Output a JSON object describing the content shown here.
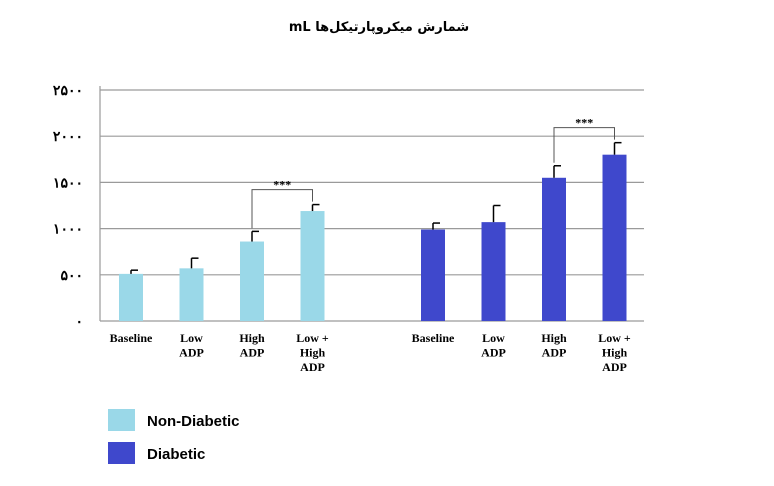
{
  "chart_data": {
    "type": "bar",
    "title": "شمارش میکروپارتیکل‌ها mL",
    "y_tick_labels": [
      "۰",
      "۵۰۰",
      "۱۰۰۰",
      "۱۵۰۰",
      "۲۰۰۰",
      "۲۵۰۰"
    ],
    "ylim": [
      0,
      2500
    ],
    "grid": true,
    "groups": [
      {
        "name": "Non-Diabetic",
        "color": "#9ad8e8",
        "categories": [
          "Baseline",
          "Low\nADP",
          "High\nADP",
          "Low +\nHigh\nADP"
        ],
        "values": [
          510,
          570,
          860,
          1190
        ],
        "errors": [
          40,
          110,
          110,
          70
        ]
      },
      {
        "name": "Diabetic",
        "color": "#3f48cc",
        "categories": [
          "Baseline",
          "Low\nADP",
          "High\nADP",
          "Low +\nHigh\nADP"
        ],
        "values": [
          990,
          1070,
          1550,
          1800
        ],
        "errors": [
          70,
          180,
          130,
          130
        ]
      }
    ],
    "significance": [
      {
        "group": 0,
        "from": 2,
        "to": 3,
        "label": "***"
      },
      {
        "group": 1,
        "from": 2,
        "to": 3,
        "label": "***"
      }
    ],
    "legend": {
      "placement": "bottom-left",
      "entries": [
        {
          "label": "Non-Diabetic",
          "color": "#9ad8e8"
        },
        {
          "label": "Diabetic",
          "color": "#3f48cc"
        }
      ]
    }
  }
}
